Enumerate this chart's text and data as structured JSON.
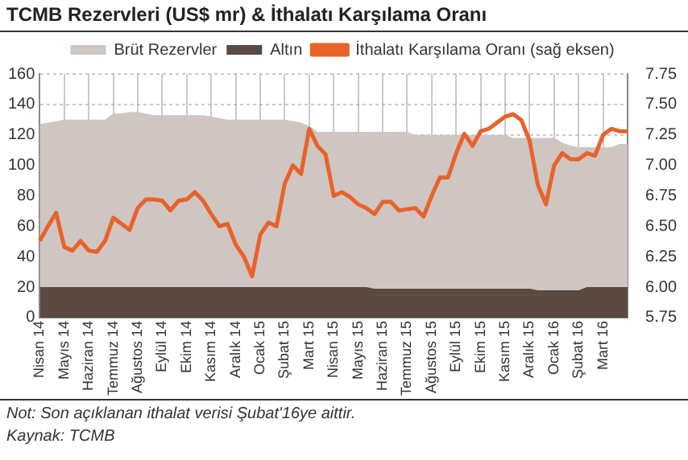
{
  "chart_data": {
    "type": "area",
    "title": "TCMB Rezervleri (US$ mr) & İthalatı Karşılama Oranı",
    "categories": [
      "Nisan 14",
      null,
      null,
      "Mayıs 14",
      null,
      null,
      "Haziran 14",
      null,
      null,
      "Temmuz 14",
      null,
      null,
      "Ağustos 14",
      null,
      null,
      "Eylül 14",
      null,
      null,
      "Ekim 14",
      null,
      null,
      "Kasım 14",
      null,
      null,
      "Aralık 14",
      null,
      null,
      "Ocak 15",
      null,
      null,
      "Şubat 15",
      null,
      null,
      "Mart 15",
      null,
      null,
      "Nisan 15",
      null,
      null,
      "Mayıs 15",
      null,
      null,
      "Haziran 15",
      null,
      null,
      "Temmuz 15",
      null,
      null,
      "Ağustos 15",
      null,
      null,
      "Eylül 15",
      null,
      null,
      "Ekim 15",
      null,
      null,
      "Kasım 15",
      null,
      null,
      "Aralık 15",
      null,
      null,
      "Ocak 16",
      null,
      null,
      "Şubat 16",
      null,
      null,
      "Mart 16",
      null,
      null,
      null
    ],
    "series": [
      {
        "name": "Brüt Rezervler",
        "color": "#cfc5c1",
        "values": [
          127,
          128,
          129,
          130,
          130,
          130,
          130,
          130,
          130,
          134,
          134,
          135,
          135,
          134,
          133,
          133,
          133,
          133,
          133,
          133,
          133,
          132,
          131,
          130,
          130,
          130,
          130,
          130,
          130,
          130,
          130,
          129,
          128,
          126,
          122,
          122,
          122,
          122,
          122,
          122,
          122,
          122,
          122,
          122,
          122,
          122,
          120,
          120,
          120,
          120,
          120,
          120,
          120,
          120,
          120,
          120,
          120,
          120,
          118,
          118,
          118,
          118,
          118,
          118,
          115,
          113,
          112,
          112,
          112,
          112,
          112,
          114,
          114
        ]
      },
      {
        "name": "Altın",
        "color": "#5a4a40",
        "values": [
          20,
          20,
          20,
          20,
          20,
          20,
          20,
          20,
          20,
          20,
          20,
          20,
          20,
          20,
          20,
          20,
          20,
          20,
          20,
          20,
          20,
          20,
          20,
          20,
          20,
          20,
          20,
          20,
          20,
          20,
          20,
          20,
          20,
          20,
          20,
          20,
          20,
          20,
          20,
          20,
          20,
          19,
          19,
          19,
          19,
          19,
          19,
          19,
          19,
          19,
          19,
          19,
          19,
          19,
          19,
          19,
          19,
          19,
          19,
          19,
          19,
          18,
          18,
          18,
          18,
          18,
          18,
          20,
          20,
          20,
          20,
          20,
          20
        ]
      },
      {
        "name": "İthalatı Karşılama Oranı (sağ eksen)",
        "type": "line",
        "axis": "y2",
        "color": "#e8622a",
        "values": [
          6.38,
          6.5,
          6.61,
          6.33,
          6.3,
          6.38,
          6.3,
          6.29,
          6.38,
          6.57,
          6.52,
          6.47,
          6.65,
          6.72,
          6.72,
          6.71,
          6.63,
          6.71,
          6.72,
          6.78,
          6.71,
          6.6,
          6.5,
          6.52,
          6.35,
          6.25,
          6.09,
          6.43,
          6.53,
          6.5,
          6.85,
          7,
          6.93,
          7.3,
          7.16,
          7.09,
          6.75,
          6.78,
          6.74,
          6.68,
          6.65,
          6.6,
          6.7,
          6.7,
          6.63,
          6.64,
          6.65,
          6.58,
          6.75,
          6.9,
          6.9,
          7.1,
          7.26,
          7.16,
          7.28,
          7.3,
          7.35,
          7.4,
          7.42,
          7.37,
          7.2,
          6.84,
          6.68,
          7,
          7.1,
          7.05,
          7.05,
          7.1,
          7.08,
          7.25,
          7.3,
          7.28,
          7.28
        ]
      }
    ],
    "ylim": [
      0,
      160
    ],
    "yticks": [
      0,
      20,
      40,
      60,
      80,
      100,
      120,
      140,
      160
    ],
    "y2lim": [
      5.75,
      7.75
    ],
    "y2ticks": [
      {
        "value": 5.75,
        "label": "5.75"
      },
      {
        "value": 6,
        "label": "6.00"
      },
      {
        "value": 6.25,
        "label": "6.25"
      },
      {
        "value": 6.5,
        "label": "6.50"
      },
      {
        "value": 6.75,
        "label": "6.75"
      },
      {
        "value": 7,
        "label": "7.00"
      },
      {
        "value": 7.25,
        "label": "7.25"
      },
      {
        "value": 7.5,
        "label": "7.50"
      },
      {
        "value": 7.75,
        "label": "7.75"
      }
    ],
    "grid": true,
    "legend": "top",
    "annotations": [
      "Not: Son açıklanan ithalat verisi Şubat'16ye aittir.",
      "Kaynak: TCMB"
    ]
  }
}
